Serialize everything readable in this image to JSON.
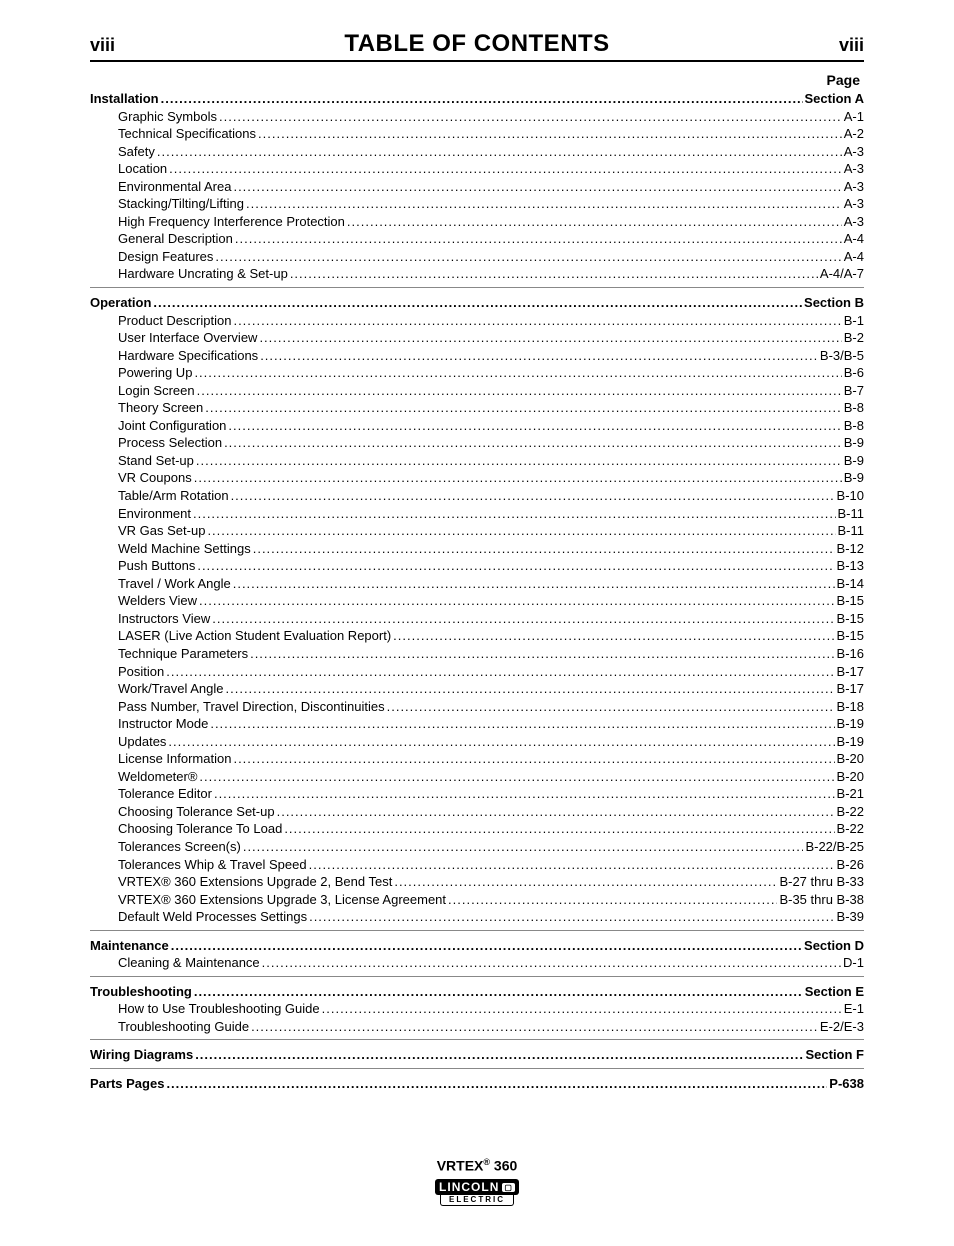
{
  "header": {
    "left": "viii",
    "title": "TABLE OF CONTENTS",
    "right": "viii",
    "page_label": "Page"
  },
  "sections": [
    {
      "title": "Installation",
      "ref": "Section A",
      "items": [
        {
          "label": "Graphic Symbols",
          "ref": "A-1"
        },
        {
          "label": "Technical Specifications",
          "ref": "A-2"
        },
        {
          "label": "Safety",
          "ref": "A-3"
        },
        {
          "label": "Location",
          "ref": "A-3"
        },
        {
          "label": "Environmental Area",
          "ref": "A-3"
        },
        {
          "label": "Stacking/Tilting/Lifting",
          "ref": "A-3"
        },
        {
          "label": "High Frequency Interference Protection",
          "ref": "A-3"
        },
        {
          "label": "General Description",
          "ref": "A-4"
        },
        {
          "label": "Design Features",
          "ref": "A-4"
        },
        {
          "label": "Hardware Uncrating & Set-up",
          "ref": "A-4/A-7"
        }
      ]
    },
    {
      "title": "Operation",
      "ref": "Section B",
      "items": [
        {
          "label": "Product Description",
          "ref": "B-1"
        },
        {
          "label": "User Interface Overview",
          "ref": "B-2"
        },
        {
          "label": "Hardware Specifications",
          "ref": "B-3/B-5"
        },
        {
          "label": "Powering Up",
          "ref": "B-6"
        },
        {
          "label": "Login Screen",
          "ref": "B-7"
        },
        {
          "label": "Theory Screen",
          "ref": "B-8"
        },
        {
          "label": "Joint Configuration",
          "ref": "B-8"
        },
        {
          "label": "Process Selection",
          "ref": "B-9"
        },
        {
          "label": "Stand Set-up",
          "ref": "B-9"
        },
        {
          "label": "VR Coupons",
          "ref": "B-9"
        },
        {
          "label": "Table/Arm Rotation",
          "ref": "B-10"
        },
        {
          "label": "Environment",
          "ref": "B-11"
        },
        {
          "label": "VR Gas Set-up",
          "ref": "B-11"
        },
        {
          "label": "Weld Machine Settings",
          "ref": "B-12"
        },
        {
          "label": "Push Buttons",
          "ref": "B-13"
        },
        {
          "label": "Travel / Work Angle",
          "ref": "B-14"
        },
        {
          "label": "Welders View",
          "ref": "B-15"
        },
        {
          "label": "Instructors View",
          "ref": "B-15"
        },
        {
          "label": "LASER (Live Action Student Evaluation Report)",
          "ref": "B-15"
        },
        {
          "label": "Technique Parameters",
          "ref": "B-16"
        },
        {
          "label": "Position",
          "ref": "B-17"
        },
        {
          "label": "Work/Travel Angle",
          "ref": "B-17"
        },
        {
          "label": "Pass Number, Travel Direction, Discontinuities",
          "ref": "B-18"
        },
        {
          "label": "Instructor Mode",
          "ref": "B-19"
        },
        {
          "label": "Updates",
          "ref": "B-19"
        },
        {
          "label": "License Information",
          "ref": "B-20"
        },
        {
          "label": "Weldometer®",
          "ref": "B-20"
        },
        {
          "label": "Tolerance Editor",
          "ref": "B-21"
        },
        {
          "label": "Choosing Tolerance Set-up",
          "ref": "B-22"
        },
        {
          "label": "Choosing Tolerance To Load",
          "ref": "B-22"
        },
        {
          "label": "Tolerances Screen(s)",
          "ref": "B-22/B-25"
        },
        {
          "label": "Tolerances Whip & Travel Speed",
          "ref": "B-26"
        },
        {
          "label": "VRTEX® 360 Extensions Upgrade 2, Bend Test",
          "ref": "B-27 thru B-33"
        },
        {
          "label": "VRTEX® 360 Extensions Upgrade 3, License Agreement",
          "ref": "B-35 thru B-38"
        },
        {
          "label": "Default Weld Processes Settings",
          "ref": "B-39"
        }
      ]
    },
    {
      "title": "Maintenance",
      "ref": "Section D",
      "items": [
        {
          "label": "Cleaning & Maintenance",
          "ref": "D-1"
        }
      ]
    },
    {
      "title": "Troubleshooting",
      "ref": "Section E",
      "items": [
        {
          "label": "How to Use Troubleshooting Guide",
          "ref": "E-1"
        },
        {
          "label": "Troubleshooting Guide",
          "ref": "E-2/E-3"
        }
      ]
    },
    {
      "title": "Wiring Diagrams",
      "ref": "Section F",
      "items": []
    },
    {
      "title": "Parts Pages",
      "ref": "P-638",
      "items": []
    }
  ],
  "footer": {
    "product_prefix": "VRTEX",
    "product_reg": "®",
    "product_suffix": " 360",
    "logo_top": "LINCOLN",
    "logo_badge": "▢",
    "logo_bottom": "ELECTRIC"
  }
}
